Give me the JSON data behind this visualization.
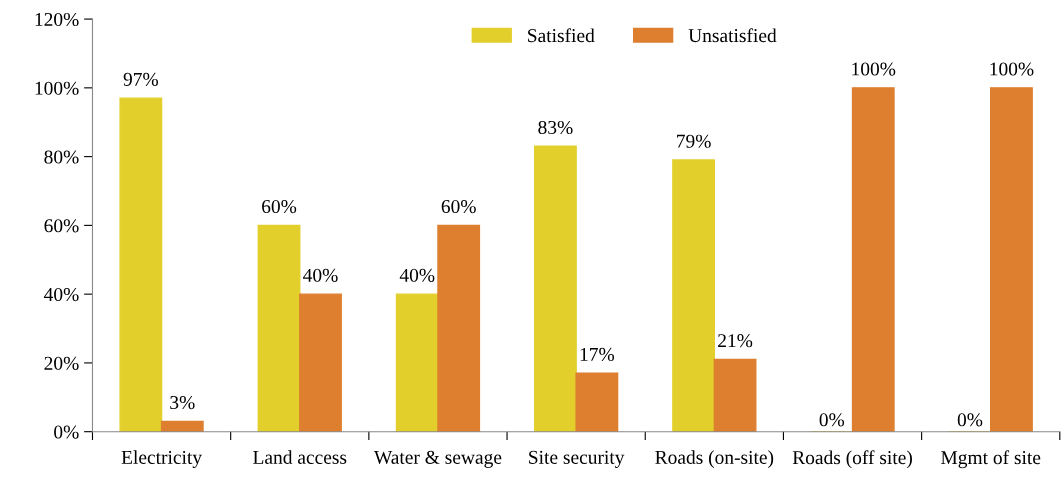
{
  "chart_data": {
    "type": "bar",
    "categories": [
      "Electricity",
      "Land access",
      "Water & sewage",
      "Site security",
      "Roads (on-site)",
      "Roads (off site)",
      "Mgmt of site"
    ],
    "series": [
      {
        "name": "Satisfied",
        "color": "#e3cf2c",
        "values": [
          97,
          60,
          40,
          83,
          79,
          0,
          0
        ],
        "value_labels": [
          "97%",
          "60%",
          "40%",
          "83%",
          "79%",
          "0%",
          "0%"
        ]
      },
      {
        "name": "Unsatisfied",
        "color": "#dd7f2f",
        "values": [
          3,
          40,
          60,
          17,
          21,
          100,
          100
        ],
        "value_labels": [
          "3%",
          "40%",
          "60%",
          "17%",
          "21%",
          "100%",
          "100%"
        ]
      }
    ],
    "ylim": [
      0,
      120
    ],
    "yticks": [
      {
        "value": 0,
        "label": "0%"
      },
      {
        "value": 20,
        "label": "20%"
      },
      {
        "value": 40,
        "label": "40%"
      },
      {
        "value": 60,
        "label": "60%"
      },
      {
        "value": 80,
        "label": "80%"
      },
      {
        "value": 100,
        "label": "100%"
      },
      {
        "value": 120,
        "label": "120%"
      }
    ],
    "grid": false,
    "legend": "top"
  }
}
